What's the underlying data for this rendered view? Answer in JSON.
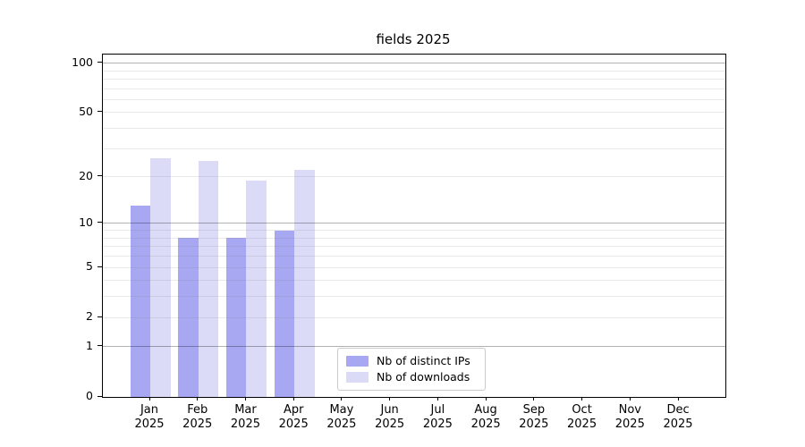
{
  "chart_data": {
    "type": "bar",
    "title": "fields 2025",
    "months": [
      "Jan",
      "Feb",
      "Mar",
      "Apr",
      "May",
      "Jun",
      "Jul",
      "Aug",
      "Sep",
      "Oct",
      "Nov",
      "Dec"
    ],
    "year": "2025",
    "series": [
      {
        "name": "Nb of distinct IPs",
        "color": "#a8a8f2",
        "values": [
          13,
          8,
          8,
          9,
          null,
          null,
          null,
          null,
          null,
          null,
          null,
          null
        ]
      },
      {
        "name": "Nb of downloads",
        "color": "#dbdbf8",
        "values": [
          26,
          25,
          19,
          22,
          null,
          null,
          null,
          null,
          null,
          null,
          null,
          null
        ]
      }
    ],
    "y_axis": {
      "scale": "log10(1+x)",
      "tick_labels": [
        0,
        1,
        2,
        5,
        10,
        20,
        50,
        100
      ],
      "strong_gridlines": [
        1,
        10,
        100
      ],
      "light_gridlines": [
        2,
        3,
        4,
        5,
        6,
        7,
        8,
        9,
        20,
        30,
        40,
        50,
        60,
        70,
        80,
        90
      ]
    },
    "legend_position": "lower center",
    "grid": "on"
  },
  "colors": {
    "background": "#ffffff",
    "axis": "#000000",
    "strong_grid": "#b3b3b3",
    "light_grid": "#e9e9e9",
    "legend_border": "#cccccc"
  }
}
